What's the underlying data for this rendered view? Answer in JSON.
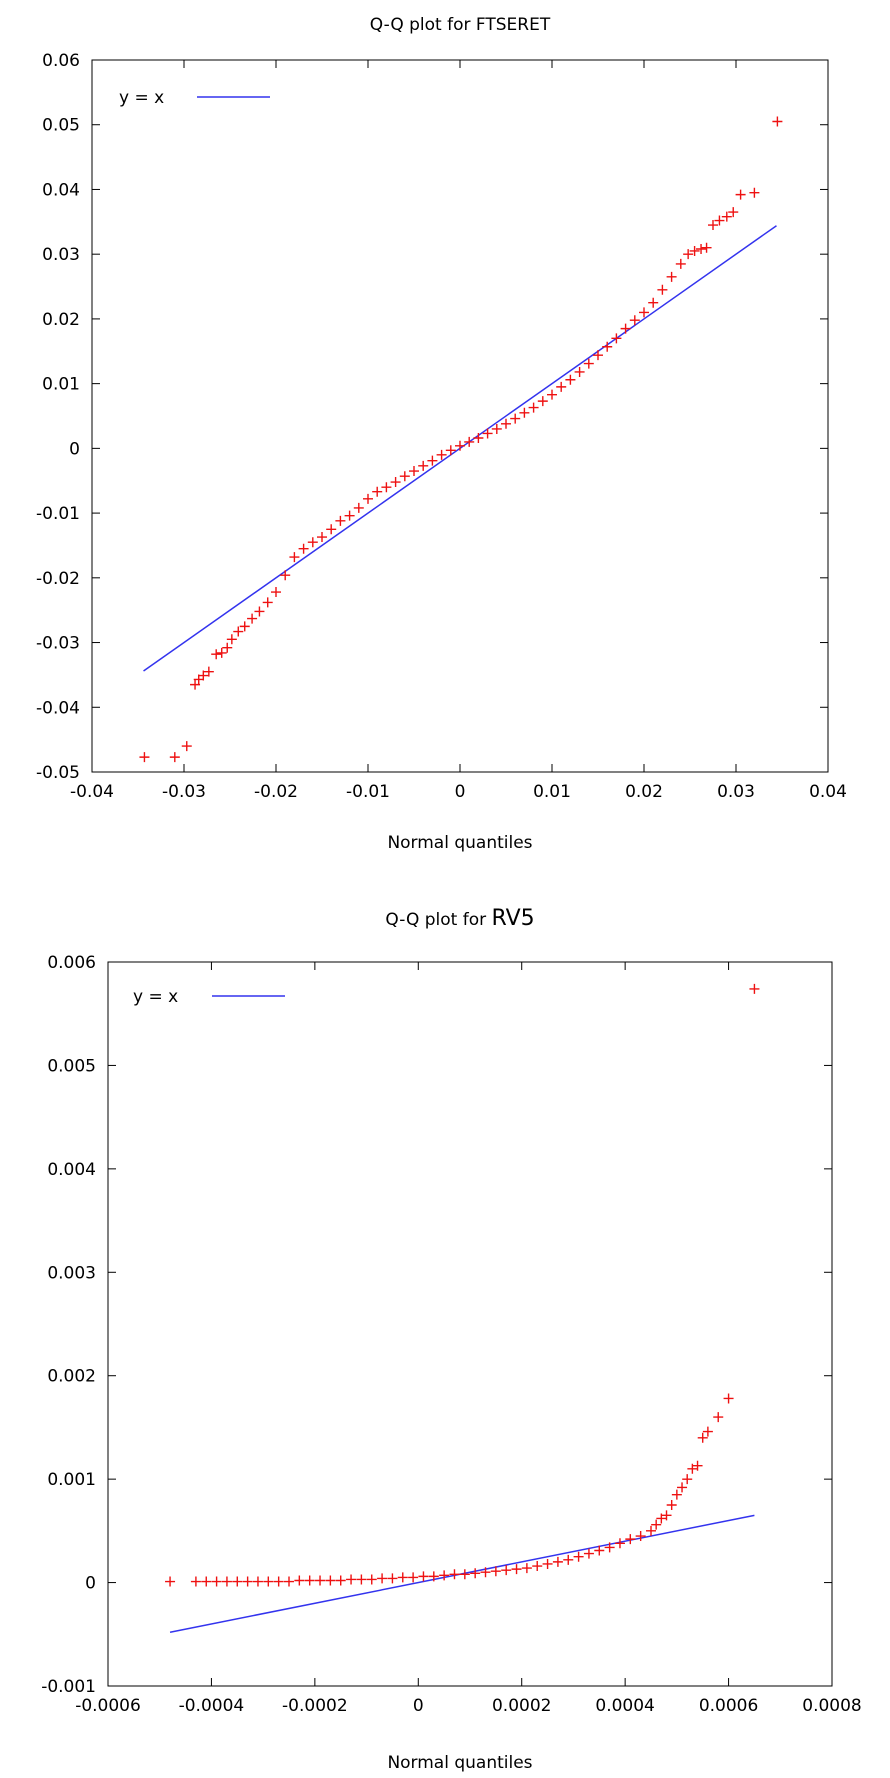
{
  "chart_data": [
    {
      "type": "scatter",
      "title_prefix": "Q-Q plot for ",
      "title_var": "FTSERET",
      "xlabel": "Normal quantiles",
      "ylabel": "",
      "xlim": [
        -0.04,
        0.04
      ],
      "ylim": [
        -0.05,
        0.06
      ],
      "x_ticks": [
        -0.04,
        -0.03,
        -0.02,
        -0.01,
        0,
        0.01,
        0.02,
        0.03,
        0.04
      ],
      "x_tick_labels": [
        "-0.04",
        "-0.03",
        "-0.02",
        "-0.01",
        "0",
        "0.01",
        "0.02",
        "0.03",
        "0.04"
      ],
      "y_ticks": [
        -0.05,
        -0.04,
        -0.03,
        -0.02,
        -0.01,
        0,
        0.01,
        0.02,
        0.03,
        0.04,
        0.05,
        0.06
      ],
      "y_tick_labels": [
        "-0.05",
        "-0.04",
        "-0.03",
        "-0.02",
        "-0.01",
        "0",
        "0.01",
        "0.02",
        "0.03",
        "0.04",
        "0.05",
        "0.06"
      ],
      "legend": {
        "label": "y = x",
        "position": "top-left"
      },
      "grid": false,
      "reference_line": {
        "label": "y = x",
        "color": "#3333ee",
        "from": [
          -0.0344,
          -0.0344
        ],
        "to": [
          0.0344,
          0.0344
        ]
      },
      "points_color": "#ee1111",
      "points": [
        [
          -0.0343,
          -0.0477
        ],
        [
          -0.031,
          -0.0477
        ],
        [
          -0.0297,
          -0.046
        ],
        [
          -0.0288,
          -0.0365
        ],
        [
          -0.0284,
          -0.0357
        ],
        [
          -0.0279,
          -0.0351
        ],
        [
          -0.0273,
          -0.0345
        ],
        [
          -0.0265,
          -0.0318
        ],
        [
          -0.0259,
          -0.0316
        ],
        [
          -0.0253,
          -0.0308
        ],
        [
          -0.0248,
          -0.0295
        ],
        [
          -0.0241,
          -0.0283
        ],
        [
          -0.0234,
          -0.0275
        ],
        [
          -0.0226,
          -0.0263
        ],
        [
          -0.0218,
          -0.0252
        ],
        [
          -0.0209,
          -0.0238
        ],
        [
          -0.02,
          -0.0222
        ],
        [
          -0.019,
          -0.0196
        ],
        [
          -0.018,
          -0.0168
        ],
        [
          -0.017,
          -0.0155
        ],
        [
          -0.016,
          -0.0145
        ],
        [
          -0.015,
          -0.0137
        ],
        [
          -0.014,
          -0.0125
        ],
        [
          -0.013,
          -0.0112
        ],
        [
          -0.012,
          -0.0104
        ],
        [
          -0.011,
          -0.0092
        ],
        [
          -0.01,
          -0.0078
        ],
        [
          -0.009,
          -0.0067
        ],
        [
          -0.008,
          -0.006
        ],
        [
          -0.007,
          -0.0052
        ],
        [
          -0.006,
          -0.0043
        ],
        [
          -0.005,
          -0.0035
        ],
        [
          -0.004,
          -0.0027
        ],
        [
          -0.003,
          -0.0019
        ],
        [
          -0.002,
          -0.001
        ],
        [
          -0.001,
          -0.0003
        ],
        [
          0.0,
          0.0004
        ],
        [
          0.001,
          0.001
        ],
        [
          0.002,
          0.0016
        ],
        [
          0.003,
          0.0023
        ],
        [
          0.004,
          0.003
        ],
        [
          0.005,
          0.0038
        ],
        [
          0.006,
          0.0046
        ],
        [
          0.007,
          0.0055
        ],
        [
          0.008,
          0.0063
        ],
        [
          0.009,
          0.0073
        ],
        [
          0.01,
          0.0083
        ],
        [
          0.011,
          0.0095
        ],
        [
          0.012,
          0.0106
        ],
        [
          0.013,
          0.0118
        ],
        [
          0.014,
          0.0131
        ],
        [
          0.015,
          0.0144
        ],
        [
          0.016,
          0.0157
        ],
        [
          0.017,
          0.017
        ],
        [
          0.018,
          0.0185
        ],
        [
          0.019,
          0.0198
        ],
        [
          0.02,
          0.021
        ],
        [
          0.021,
          0.0225
        ],
        [
          0.022,
          0.0245
        ],
        [
          0.023,
          0.0265
        ],
        [
          0.024,
          0.0285
        ],
        [
          0.0248,
          0.03
        ],
        [
          0.0255,
          0.0305
        ],
        [
          0.0262,
          0.0308
        ],
        [
          0.0268,
          0.031
        ],
        [
          0.0275,
          0.0345
        ],
        [
          0.0282,
          0.0352
        ],
        [
          0.029,
          0.0358
        ],
        [
          0.0297,
          0.0365
        ],
        [
          0.0305,
          0.0392
        ],
        [
          0.032,
          0.0395
        ],
        [
          0.0345,
          0.0505
        ]
      ]
    },
    {
      "type": "scatter",
      "title_prefix": "Q-Q plot for ",
      "title_var": "RV5",
      "xlabel": "Normal quantiles",
      "ylabel": "",
      "xlim": [
        -0.0006,
        0.0008
      ],
      "ylim": [
        -0.001,
        0.006
      ],
      "x_ticks": [
        -0.0006,
        -0.0004,
        -0.0002,
        0,
        0.0002,
        0.0004,
        0.0006,
        0.0008
      ],
      "x_tick_labels": [
        "-0.0006",
        "-0.0004",
        "-0.0002",
        "0",
        "0.0002",
        "0.0004",
        "0.0006",
        "0.0008"
      ],
      "y_ticks": [
        -0.001,
        0,
        0.001,
        0.002,
        0.003,
        0.004,
        0.005,
        0.006
      ],
      "y_tick_labels": [
        "-0.001",
        "0",
        "0.001",
        "0.002",
        "0.003",
        "0.004",
        "0.005",
        "0.006"
      ],
      "legend": {
        "label": "y = x",
        "position": "top-left"
      },
      "grid": false,
      "reference_line": {
        "label": "y = x",
        "color": "#3333ee",
        "from": [
          -0.00048,
          -0.00048
        ],
        "to": [
          0.00065,
          0.00065
        ]
      },
      "points_color": "#ee1111",
      "points": [
        [
          -0.00048,
          1e-05
        ],
        [
          -0.00043,
          1e-05
        ],
        [
          -0.00041,
          1e-05
        ],
        [
          -0.00039,
          1e-05
        ],
        [
          -0.00037,
          1e-05
        ],
        [
          -0.00035,
          1e-05
        ],
        [
          -0.00033,
          1e-05
        ],
        [
          -0.00031,
          1e-05
        ],
        [
          -0.00029,
          1e-05
        ],
        [
          -0.00027,
          1e-05
        ],
        [
          -0.00025,
          1e-05
        ],
        [
          -0.00023,
          2e-05
        ],
        [
          -0.00021,
          2e-05
        ],
        [
          -0.00019,
          2e-05
        ],
        [
          -0.00017,
          2e-05
        ],
        [
          -0.00015,
          2e-05
        ],
        [
          -0.00013,
          3e-05
        ],
        [
          -0.00011,
          3e-05
        ],
        [
          -9e-05,
          3e-05
        ],
        [
          -7e-05,
          4e-05
        ],
        [
          -5e-05,
          4e-05
        ],
        [
          -3e-05,
          5e-05
        ],
        [
          -1e-05,
          5e-05
        ],
        [
          1e-05,
          6e-05
        ],
        [
          3e-05,
          6e-05
        ],
        [
          5e-05,
          7e-05
        ],
        [
          7e-05,
          8e-05
        ],
        [
          9e-05,
          8e-05
        ],
        [
          0.00011,
          9e-05
        ],
        [
          0.00013,
          0.0001
        ],
        [
          0.00015,
          0.00011
        ],
        [
          0.00017,
          0.00012
        ],
        [
          0.00019,
          0.00013
        ],
        [
          0.00021,
          0.00014
        ],
        [
          0.00023,
          0.00016
        ],
        [
          0.00025,
          0.00018
        ],
        [
          0.00027,
          0.0002
        ],
        [
          0.00029,
          0.00022
        ],
        [
          0.00031,
          0.00025
        ],
        [
          0.00033,
          0.00028
        ],
        [
          0.00035,
          0.00031
        ],
        [
          0.00037,
          0.00034
        ],
        [
          0.00039,
          0.00038
        ],
        [
          0.00041,
          0.00042
        ],
        [
          0.00043,
          0.00045
        ],
        [
          0.00045,
          0.0005
        ],
        [
          0.00046,
          0.00056
        ],
        [
          0.00047,
          0.00062
        ],
        [
          0.00048,
          0.00065
        ],
        [
          0.00049,
          0.00075
        ],
        [
          0.0005,
          0.00085
        ],
        [
          0.00051,
          0.00092
        ],
        [
          0.00052,
          0.001
        ],
        [
          0.00053,
          0.0011
        ],
        [
          0.00054,
          0.00113
        ],
        [
          0.00055,
          0.0014
        ],
        [
          0.00056,
          0.00146
        ],
        [
          0.00058,
          0.0016
        ],
        [
          0.0006,
          0.00178
        ],
        [
          0.00065,
          0.00574
        ]
      ]
    }
  ]
}
